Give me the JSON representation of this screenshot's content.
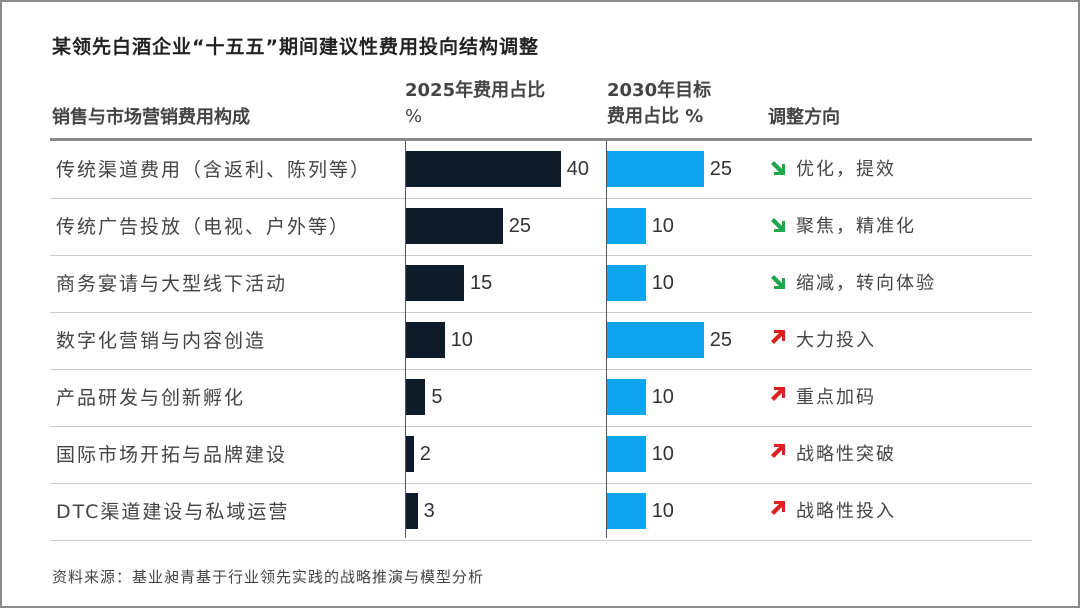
{
  "chart_data": {
    "type": "table",
    "title": "某领先白酒企业“十五五”期间建议性费用投向结构调整",
    "columns": {
      "category": "销售与市场营销费用构成",
      "share_2025_line1": "2025年费用占比",
      "share_2025_line2": "%",
      "share_2030_line1": "2030年目标",
      "share_2030_line2": "费用占比 %",
      "direction": "调整方向"
    },
    "colors": {
      "bar_2025": "#0d1b2a",
      "bar_2030": "#0ea5ec",
      "down": "#1fa64a",
      "up": "#e02020"
    },
    "rows": [
      {
        "category": "传统渠道费用（含返利、陈列等）",
        "v2025": 40,
        "v2030": 25,
        "trend": "down",
        "direction": "优化，提效"
      },
      {
        "category": "传统广告投放（电视、户外等）",
        "v2025": 25,
        "v2030": 10,
        "trend": "down",
        "direction": "聚焦，精准化"
      },
      {
        "category": "商务宴请与大型线下活动",
        "v2025": 15,
        "v2030": 10,
        "trend": "down",
        "direction": "缩减，转向体验"
      },
      {
        "category": "数字化营销与内容创造",
        "v2025": 10,
        "v2030": 25,
        "trend": "up",
        "direction": "大力投入"
      },
      {
        "category": "产品研发与创新孵化",
        "v2025": 5,
        "v2030": 10,
        "trend": "up",
        "direction": "重点加码"
      },
      {
        "category": "国际市场开拓与品牌建设",
        "v2025": 2,
        "v2030": 10,
        "trend": "up",
        "direction": "战略性突破"
      },
      {
        "category": "DTC渠道建设与私域运营",
        "v2025": 3,
        "v2030": 10,
        "trend": "up",
        "direction": "战略性投入"
      }
    ],
    "source": "资料来源：基业昶青基于行业领先实践的战略推演与模型分析"
  }
}
